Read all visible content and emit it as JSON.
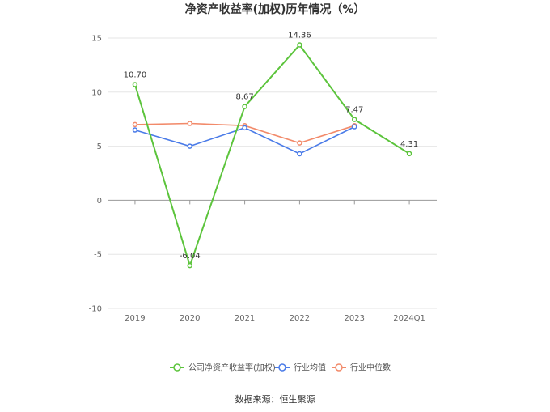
{
  "chart_data": {
    "type": "line",
    "title": "净资产收益率(加权)历年情况（%）",
    "categories": [
      "2019",
      "2020",
      "2021",
      "2022",
      "2023",
      "2024Q1"
    ],
    "ylim": [
      -10,
      15
    ],
    "yticks": [
      -10,
      -5,
      0,
      5,
      10,
      15
    ],
    "grid": true,
    "legend_position": "bottom",
    "series": [
      {
        "name": "公司净资产收益率(加权)",
        "color": "#5cc43c",
        "values": [
          10.7,
          -6.04,
          8.67,
          14.36,
          7.47,
          4.31
        ],
        "labels": [
          "10.70",
          "-6.04",
          "8.67",
          "14.36",
          "7.47",
          "4.31"
        ]
      },
      {
        "name": "行业均值",
        "color": "#4a7be8",
        "values": [
          6.5,
          5.0,
          6.7,
          4.3,
          6.8,
          null
        ]
      },
      {
        "name": "行业中位数",
        "color": "#f28a6a",
        "values": [
          7.0,
          7.1,
          6.9,
          5.3,
          6.9,
          null
        ]
      }
    ]
  },
  "source": "数据来源：恒生聚源"
}
